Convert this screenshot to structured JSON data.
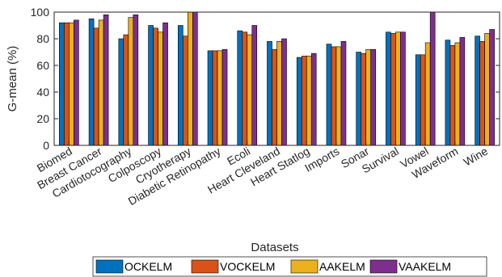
{
  "chart_data": {
    "type": "bar",
    "xlabel": "Datasets",
    "ylabel": "G-mean (%)",
    "ylim": [
      0,
      100
    ],
    "yticks": [
      0,
      20,
      40,
      60,
      80,
      100
    ],
    "grid": false,
    "legend_position": "bottom",
    "categories": [
      "Biomed",
      "Breast Cancer",
      "Cardiotocography",
      "Colposcopy",
      "Cryotherapy",
      "Diabetic Retinopathy",
      "Ecoli",
      "Heart Cleveland",
      "Heart Statlog",
      "Imports",
      "Sonar",
      "Survival",
      "Vowel",
      "Waveform",
      "Wine"
    ],
    "series": [
      {
        "name": "OCKELM",
        "color": "#0072BD",
        "values": [
          92,
          95,
          80,
          90,
          90,
          71,
          86,
          78,
          66,
          76,
          70,
          85,
          68,
          79,
          82
        ]
      },
      {
        "name": "VOCKELM",
        "color": "#D95319",
        "values": [
          92,
          88,
          83,
          88,
          82,
          71,
          85,
          72,
          67,
          74,
          69,
          84,
          68,
          75,
          78
        ]
      },
      {
        "name": "AAKELM",
        "color": "#EDB120",
        "values": [
          92,
          94,
          96,
          85,
          100,
          71,
          83,
          78,
          67,
          74,
          72,
          85,
          77,
          77,
          84
        ]
      },
      {
        "name": "VAAKELM",
        "color": "#7E2F8E",
        "values": [
          94,
          98,
          98,
          92,
          100,
          72,
          90,
          80,
          69,
          78,
          72,
          85,
          100,
          81,
          87
        ]
      }
    ]
  }
}
